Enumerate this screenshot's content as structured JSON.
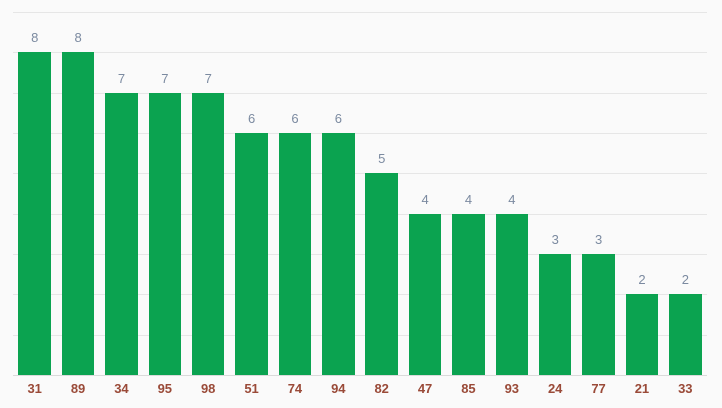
{
  "chart_data": {
    "type": "bar",
    "categories": [
      "31",
      "89",
      "34",
      "95",
      "98",
      "51",
      "74",
      "94",
      "82",
      "47",
      "85",
      "93",
      "24",
      "77",
      "21",
      "33"
    ],
    "values": [
      8,
      8,
      7,
      7,
      7,
      6,
      6,
      6,
      5,
      4,
      4,
      4,
      3,
      3,
      2,
      2
    ],
    "title": "",
    "xlabel": "",
    "ylabel": "",
    "ylim": [
      0,
      9
    ],
    "grid": true,
    "gridline_step": 1,
    "legend": "none",
    "annotations_visible": true,
    "colors": {
      "bar": "#0ba350",
      "annotation_text": "#7b8aa0",
      "category_text": "#9a4a38",
      "gridline": "#e6e6e6",
      "baseline": "#dadada",
      "background": "#fafafa"
    }
  }
}
